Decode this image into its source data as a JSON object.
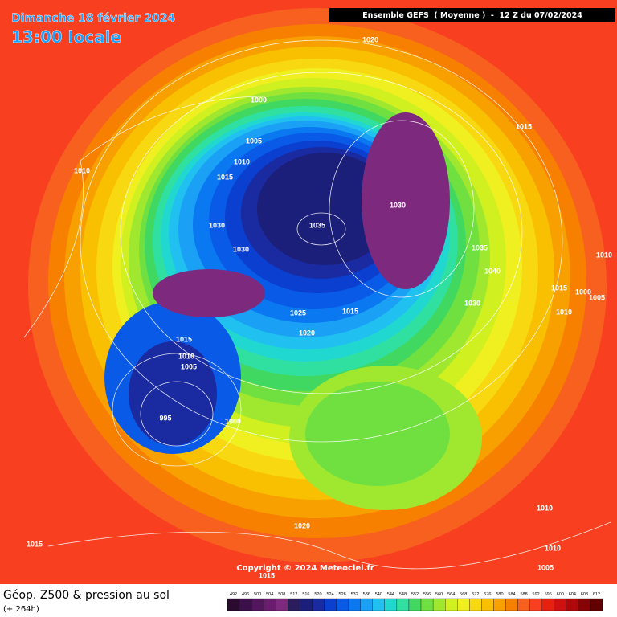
{
  "header": {
    "date": "Dimanche 18 février 2024",
    "time": "13:00 locale",
    "model": "Ensemble GEFS  ( Moyenne )  -  12 Z du 07/02/2024"
  },
  "isobar_labels": [
    "1020",
    "1000",
    "1015",
    "1005",
    "1010",
    "1010",
    "1015",
    "1030",
    "1030",
    "1035",
    "1030",
    "1035",
    "1010",
    "1040",
    "1015",
    "1000",
    "1005",
    "1025",
    "1015",
    "1030",
    "1010",
    "1020",
    "1015",
    "1010",
    "1005",
    "995",
    "1000",
    "1010",
    "1020",
    "1015",
    "1010",
    "1005",
    "1015"
  ],
  "copyright": "Copyright © 2024 Meteociel.fr",
  "footer": {
    "title": "Géop. Z500 & pression au sol",
    "subtitle": "(+ 264h)"
  },
  "legend": {
    "values": [
      492,
      496,
      500,
      504,
      508,
      512,
      516,
      520,
      524,
      528,
      532,
      536,
      540,
      544,
      548,
      552,
      556,
      560,
      564,
      568,
      572,
      576,
      580,
      584,
      588,
      592,
      596,
      600,
      604,
      608,
      612
    ],
    "colors": [
      "#2a0a2e",
      "#3c0f4a",
      "#52155e",
      "#6a1c6e",
      "#7d2a7e",
      "#2b1c5e",
      "#1c1f7a",
      "#1a2aa0",
      "#0b3fd0",
      "#0a5ae8",
      "#0a78f0",
      "#1aa0f5",
      "#20c0f0",
      "#20d8d0",
      "#30e0a0",
      "#40d860",
      "#70e040",
      "#a0e830",
      "#d0f020",
      "#f0f020",
      "#f8d810",
      "#f8c000",
      "#f8a000",
      "#f88000",
      "#f86020",
      "#f84020",
      "#e82010",
      "#d01010",
      "#b00808",
      "#880404",
      "#600000"
    ]
  }
}
